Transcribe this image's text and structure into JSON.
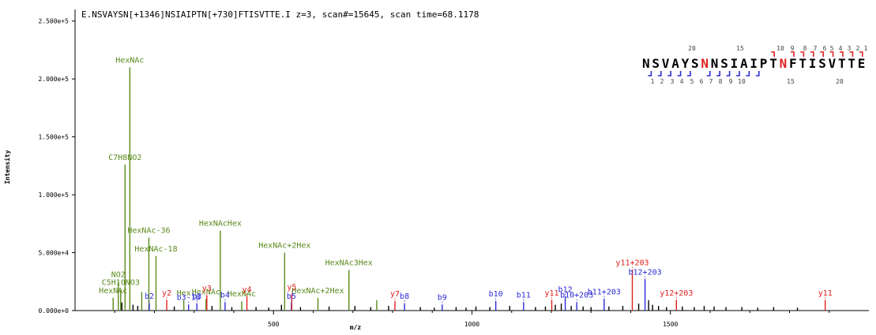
{
  "chart_data": {
    "type": "bar",
    "title": "E.NSVAYSN[+1346]NSIAIPTN[+730]FTISVTTE.I z=3, scan#=15645, scan time=68.1178",
    "xlabel": "m/z",
    "ylabel": "Intensity",
    "xlim": [
      0,
      2000
    ],
    "ylim": [
      0,
      260000
    ],
    "x_ticks": [
      500,
      1000,
      1500
    ],
    "y_ticks": [
      {
        "value": 0,
        "label": "0.000e+0"
      },
      {
        "value": 50000,
        "label": "5.000e+4"
      },
      {
        "value": 100000,
        "label": "1.000e+5"
      },
      {
        "value": 150000,
        "label": "1.500e+5"
      },
      {
        "value": 200000,
        "label": "2.000e+5"
      },
      {
        "value": 250000,
        "label": "2.500e+5"
      }
    ],
    "colors": {
      "oxonium": "#5a8a1c",
      "b_ion": "#2b2bd6",
      "y_ion": "#e02020",
      "background": "#000000",
      "highlight": "#e02020"
    },
    "peptide": {
      "sequence": "NSVAYSNNSIAIPTNFTISVTTE",
      "modified_positions": [
        7,
        15
      ],
      "top_numbers": [
        "20",
        "15",
        "10",
        "9",
        "8",
        "7",
        "6",
        "5",
        "4",
        "3",
        "2",
        "1"
      ],
      "bottom_numbers": [
        "1",
        "2",
        "3",
        "4",
        "5",
        "6",
        "7",
        "8",
        "9",
        "10",
        "15",
        "20"
      ]
    },
    "series": [
      {
        "name": "oxonium",
        "color": "#5a8a1c",
        "points": [
          {
            "x": 138,
            "y": 210000,
            "label": "HexNAc"
          },
          {
            "x": 126,
            "y": 126000,
            "label": "C7H8NO2"
          },
          {
            "x": 366,
            "y": 69000,
            "label": "HexNAcHex"
          },
          {
            "x": 186,
            "y": 63000,
            "label": "HexNAc-36"
          },
          {
            "x": 204,
            "y": 47000,
            "label": "HexNAc-18"
          },
          {
            "x": 528,
            "y": 50000,
            "label": "HexNAc+2Hex"
          },
          {
            "x": 690,
            "y": 35000,
            "label": "HexNAc3Hex"
          },
          {
            "x": 109,
            "y": 25000,
            "label": "NO2"
          },
          {
            "x": 115,
            "y": 18000,
            "label": "C5H10NO3"
          },
          {
            "x": 96,
            "y": 11000,
            "label": "HexNAc"
          },
          {
            "x": 168,
            "y": 16000,
            "label": ""
          },
          {
            "x": 274,
            "y": 9000,
            "label": "Hex"
          },
          {
            "x": 330,
            "y": 10000,
            "label": "HexNAc"
          },
          {
            "x": 420,
            "y": 8000,
            "label": "HexNAc"
          },
          {
            "x": 612,
            "y": 11000,
            "label": "HexNAc+2Hex"
          },
          {
            "x": 760,
            "y": 9000,
            "label": ""
          }
        ]
      },
      {
        "name": "b ions",
        "color": "#2b2bd6",
        "points": [
          {
            "x": 187,
            "y": 6000,
            "label": "b2"
          },
          {
            "x": 286,
            "y": 5000,
            "label": "b3-18"
          },
          {
            "x": 307,
            "y": 6000,
            "label": "b3"
          },
          {
            "x": 378,
            "y": 7000,
            "label": "b4"
          },
          {
            "x": 545,
            "y": 6000,
            "label": "b5"
          },
          {
            "x": 830,
            "y": 6000,
            "label": "b8"
          },
          {
            "x": 925,
            "y": 5000,
            "label": "b9"
          },
          {
            "x": 1060,
            "y": 8000,
            "label": "b10"
          },
          {
            "x": 1130,
            "y": 7000,
            "label": "b11"
          },
          {
            "x": 1235,
            "y": 12000,
            "label": "b12"
          },
          {
            "x": 1264,
            "y": 7000,
            "label": "b10+203"
          },
          {
            "x": 1333,
            "y": 10000,
            "label": "b11+203"
          },
          {
            "x": 1436,
            "y": 27000,
            "label": "b12+203"
          }
        ]
      },
      {
        "name": "y ions",
        "color": "#e02020",
        "points": [
          {
            "x": 231,
            "y": 9000,
            "label": "y2"
          },
          {
            "x": 332,
            "y": 13000,
            "label": "y3"
          },
          {
            "x": 433,
            "y": 12000,
            "label": "y4"
          },
          {
            "x": 546,
            "y": 14000,
            "label": "y5"
          },
          {
            "x": 806,
            "y": 8000,
            "label": "y7"
          },
          {
            "x": 1201,
            "y": 9000,
            "label": "y11"
          },
          {
            "x": 1404,
            "y": 35000,
            "label": "y11+203"
          },
          {
            "x": 1515,
            "y": 9000,
            "label": "y12+203"
          },
          {
            "x": 1890,
            "y": 9000,
            "label": "y11"
          }
        ]
      },
      {
        "name": "unassigned",
        "color": "#000000",
        "points": [
          {
            "x": 118,
            "y": 7000
          },
          {
            "x": 146,
            "y": 5000
          },
          {
            "x": 158,
            "y": 4000
          },
          {
            "x": 250,
            "y": 3500
          },
          {
            "x": 345,
            "y": 4000
          },
          {
            "x": 395,
            "y": 3000
          },
          {
            "x": 456,
            "y": 3000
          },
          {
            "x": 488,
            "y": 2500
          },
          {
            "x": 520,
            "y": 5000
          },
          {
            "x": 568,
            "y": 3000
          },
          {
            "x": 640,
            "y": 3500
          },
          {
            "x": 705,
            "y": 4000
          },
          {
            "x": 745,
            "y": 3000
          },
          {
            "x": 790,
            "y": 4000
          },
          {
            "x": 870,
            "y": 3000
          },
          {
            "x": 905,
            "y": 2500
          },
          {
            "x": 960,
            "y": 3000
          },
          {
            "x": 985,
            "y": 2500
          },
          {
            "x": 1010,
            "y": 3500
          },
          {
            "x": 1045,
            "y": 3000
          },
          {
            "x": 1095,
            "y": 4000
          },
          {
            "x": 1160,
            "y": 3000
          },
          {
            "x": 1185,
            "y": 3500
          },
          {
            "x": 1210,
            "y": 5000
          },
          {
            "x": 1225,
            "y": 6000
          },
          {
            "x": 1250,
            "y": 4000
          },
          {
            "x": 1280,
            "y": 3500
          },
          {
            "x": 1300,
            "y": 3000
          },
          {
            "x": 1345,
            "y": 3500
          },
          {
            "x": 1380,
            "y": 4000
          },
          {
            "x": 1420,
            "y": 6000
          },
          {
            "x": 1445,
            "y": 9000
          },
          {
            "x": 1455,
            "y": 5000
          },
          {
            "x": 1470,
            "y": 4000
          },
          {
            "x": 1490,
            "y": 3000
          },
          {
            "x": 1530,
            "y": 3500
          },
          {
            "x": 1560,
            "y": 3000
          },
          {
            "x": 1585,
            "y": 4000
          },
          {
            "x": 1610,
            "y": 3500
          },
          {
            "x": 1640,
            "y": 3000
          },
          {
            "x": 1680,
            "y": 3000
          },
          {
            "x": 1720,
            "y": 2500
          },
          {
            "x": 1760,
            "y": 3000
          },
          {
            "x": 1820,
            "y": 2500
          }
        ]
      }
    ]
  }
}
